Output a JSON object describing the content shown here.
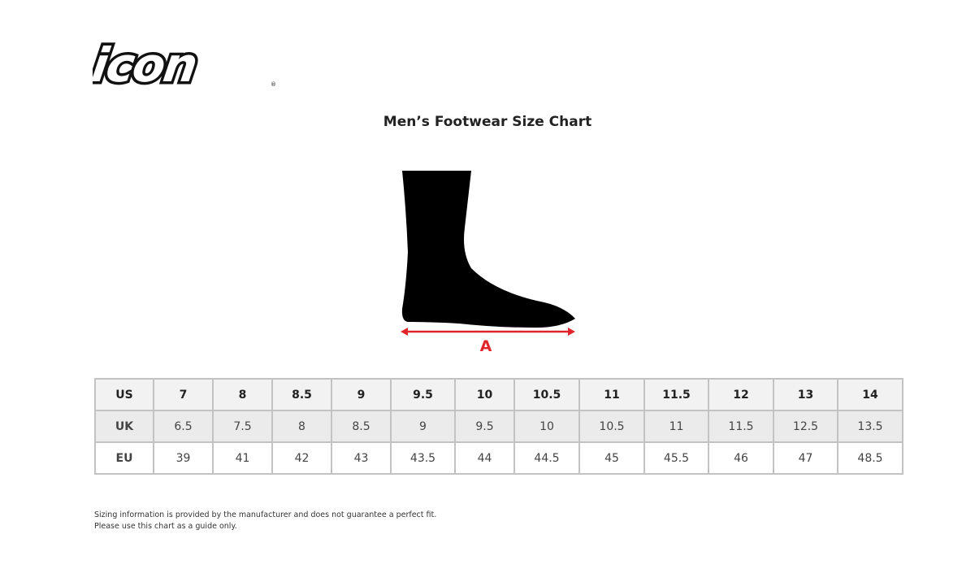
{
  "logo": {
    "text": "icon",
    "registered_mark": "®"
  },
  "title": "Men’s Footwear Size Chart",
  "diagram": {
    "measure_label": "A",
    "arrow_color": "#e0262b"
  },
  "table": {
    "rows": [
      {
        "label": "US",
        "values": [
          "7",
          "8",
          "8.5",
          "9",
          "9.5",
          "10",
          "10.5",
          "11",
          "11.5",
          "12",
          "13",
          "14"
        ]
      },
      {
        "label": "UK",
        "values": [
          "6.5",
          "7.5",
          "8",
          "8.5",
          "9",
          "9.5",
          "10",
          "10.5",
          "11",
          "11.5",
          "12.5",
          "13.5"
        ]
      },
      {
        "label": "EU",
        "values": [
          "39",
          "41",
          "42",
          "43",
          "43.5",
          "44",
          "44.5",
          "45",
          "45.5",
          "46",
          "47",
          "48.5"
        ]
      }
    ]
  },
  "disclaimer": {
    "line1": "Sizing information is provided by the manufacturer and does not guarantee a perfect fit.",
    "line2": "Please use this chart as a guide only."
  }
}
